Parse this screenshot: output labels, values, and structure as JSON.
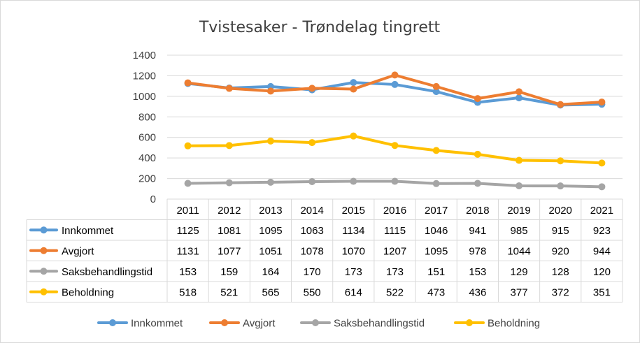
{
  "chart_data": {
    "type": "line",
    "title": "Tvistesaker - Trøndelag tingrett",
    "xlabel": "",
    "ylabel": "",
    "ylim": [
      0,
      1400
    ],
    "yticks": [
      "0",
      "200",
      "400",
      "600",
      "800",
      "1000",
      "1200",
      "1400"
    ],
    "grid": true,
    "legend_position": "bottom",
    "data_table": true,
    "categories": [
      "2011",
      "2012",
      "2013",
      "2014",
      "2015",
      "2016",
      "2017",
      "2018",
      "2019",
      "2020",
      "2021"
    ],
    "series": [
      {
        "name": "Innkommet",
        "color": "#5b9bd5",
        "values": [
          1125,
          1081,
          1095,
          1063,
          1134,
          1115,
          1046,
          941,
          985,
          915,
          923
        ]
      },
      {
        "name": "Avgjort",
        "color": "#ed7d31",
        "values": [
          1131,
          1077,
          1051,
          1078,
          1070,
          1207,
          1095,
          978,
          1044,
          920,
          944
        ]
      },
      {
        "name": "Saksbehandlingstid",
        "color": "#a5a5a5",
        "values": [
          153,
          159,
          164,
          170,
          173,
          173,
          151,
          153,
          129,
          128,
          120
        ]
      },
      {
        "name": "Beholdning",
        "color": "#ffc000",
        "values": [
          518,
          521,
          565,
          550,
          614,
          522,
          473,
          436,
          377,
          372,
          351
        ]
      }
    ]
  }
}
